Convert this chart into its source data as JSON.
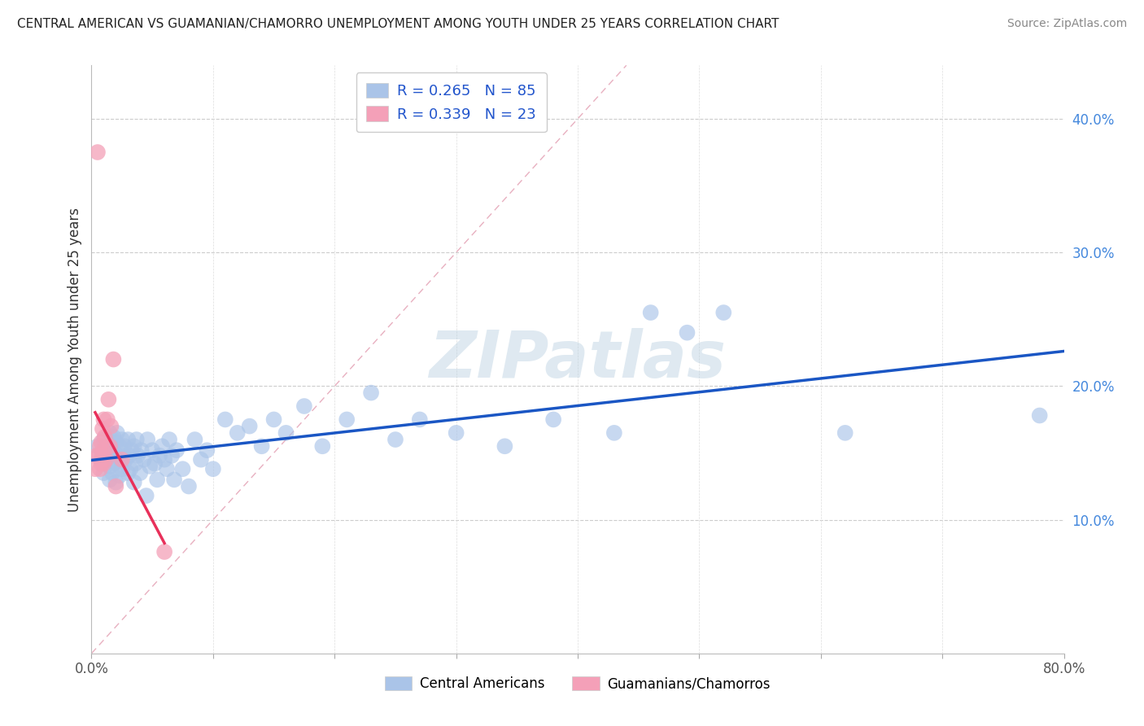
{
  "title": "CENTRAL AMERICAN VS GUAMANIAN/CHAMORRO UNEMPLOYMENT AMONG YOUTH UNDER 25 YEARS CORRELATION CHART",
  "source": "Source: ZipAtlas.com",
  "ylabel": "Unemployment Among Youth under 25 years",
  "watermark": "ZIPatlas",
  "xlim": [
    0,
    0.8
  ],
  "ylim": [
    0.0,
    0.44
  ],
  "xticks": [
    0.0,
    0.1,
    0.2,
    0.3,
    0.4,
    0.5,
    0.6,
    0.7,
    0.8
  ],
  "xticklabels": [
    "0.0%",
    "",
    "",
    "",
    "",
    "",
    "",
    "",
    "80.0%"
  ],
  "yticks_right": [
    0.1,
    0.2,
    0.3,
    0.4
  ],
  "ytick_right_labels": [
    "10.0%",
    "20.0%",
    "30.0%",
    "40.0%"
  ],
  "blue_R": 0.265,
  "blue_N": 85,
  "pink_R": 0.339,
  "pink_N": 23,
  "blue_color": "#aac4e8",
  "blue_line_color": "#1a56c4",
  "pink_color": "#f4a0b8",
  "pink_line_color": "#e8305a",
  "diag_color": "#e8b0c0",
  "blue_scatter_x": [
    0.005,
    0.008,
    0.01,
    0.01,
    0.01,
    0.012,
    0.013,
    0.015,
    0.015,
    0.015,
    0.015,
    0.015,
    0.016,
    0.017,
    0.017,
    0.018,
    0.018,
    0.019,
    0.02,
    0.02,
    0.02,
    0.021,
    0.022,
    0.023,
    0.023,
    0.024,
    0.025,
    0.025,
    0.026,
    0.027,
    0.028,
    0.03,
    0.03,
    0.031,
    0.032,
    0.033,
    0.035,
    0.035,
    0.036,
    0.037,
    0.038,
    0.04,
    0.041,
    0.043,
    0.045,
    0.046,
    0.048,
    0.05,
    0.052,
    0.054,
    0.056,
    0.058,
    0.06,
    0.062,
    0.064,
    0.066,
    0.068,
    0.07,
    0.075,
    0.08,
    0.085,
    0.09,
    0.095,
    0.1,
    0.11,
    0.12,
    0.13,
    0.14,
    0.15,
    0.16,
    0.175,
    0.19,
    0.21,
    0.23,
    0.25,
    0.27,
    0.3,
    0.34,
    0.38,
    0.43,
    0.46,
    0.49,
    0.52,
    0.62,
    0.78
  ],
  "blue_scatter_y": [
    0.155,
    0.145,
    0.135,
    0.15,
    0.16,
    0.148,
    0.155,
    0.13,
    0.14,
    0.152,
    0.158,
    0.165,
    0.148,
    0.135,
    0.155,
    0.142,
    0.162,
    0.15,
    0.128,
    0.143,
    0.158,
    0.165,
    0.148,
    0.133,
    0.155,
    0.145,
    0.138,
    0.16,
    0.148,
    0.155,
    0.145,
    0.135,
    0.16,
    0.148,
    0.138,
    0.152,
    0.128,
    0.155,
    0.142,
    0.16,
    0.148,
    0.135,
    0.152,
    0.145,
    0.118,
    0.16,
    0.14,
    0.152,
    0.142,
    0.13,
    0.148,
    0.155,
    0.145,
    0.138,
    0.16,
    0.148,
    0.13,
    0.152,
    0.138,
    0.125,
    0.16,
    0.145,
    0.152,
    0.138,
    0.175,
    0.165,
    0.17,
    0.155,
    0.175,
    0.165,
    0.185,
    0.155,
    0.175,
    0.195,
    0.16,
    0.175,
    0.165,
    0.155,
    0.175,
    0.165,
    0.255,
    0.24,
    0.255,
    0.165,
    0.178
  ],
  "pink_scatter_x": [
    0.003,
    0.004,
    0.005,
    0.006,
    0.007,
    0.007,
    0.008,
    0.008,
    0.009,
    0.009,
    0.01,
    0.01,
    0.01,
    0.011,
    0.012,
    0.013,
    0.014,
    0.015,
    0.016,
    0.018,
    0.02,
    0.025,
    0.06
  ],
  "pink_scatter_y": [
    0.138,
    0.148,
    0.375,
    0.148,
    0.138,
    0.155,
    0.142,
    0.158,
    0.148,
    0.168,
    0.142,
    0.152,
    0.175,
    0.162,
    0.145,
    0.175,
    0.19,
    0.155,
    0.17,
    0.22,
    0.125,
    0.145,
    0.076
  ]
}
